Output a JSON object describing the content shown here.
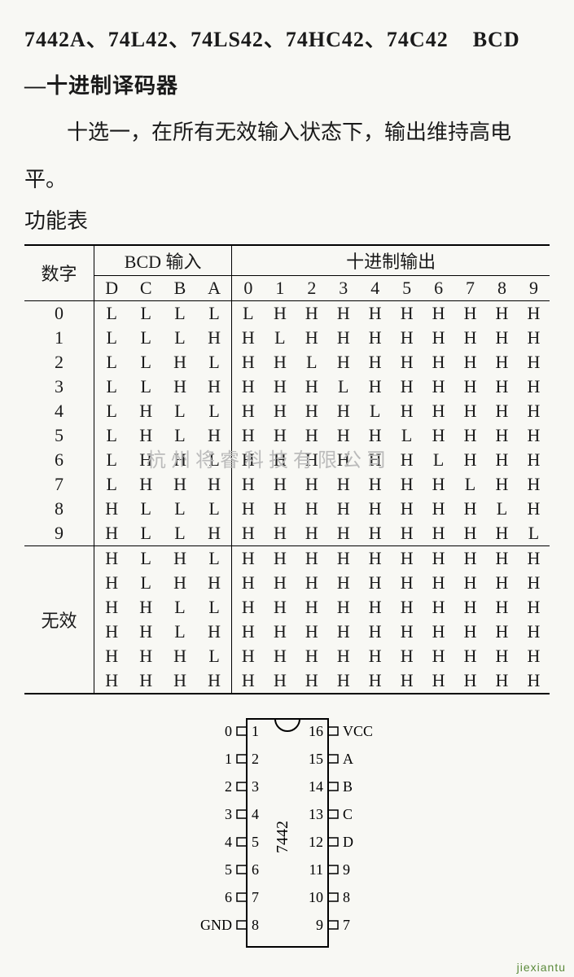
{
  "header": {
    "parts": "7442A、74L42、74LS42、74HC42、74C42",
    "type": "BCD",
    "subtitle": "—十进制译码器"
  },
  "description": "十选一，在所有无效输入状态下，输出维持高电平。",
  "table_title": "功能表",
  "columns": {
    "digit_header": "数字",
    "input_group": "BCD 输入",
    "output_group": "十进制输出",
    "inputs": [
      "D",
      "C",
      "B",
      "A"
    ],
    "outputs": [
      "0",
      "1",
      "2",
      "3",
      "4",
      "5",
      "6",
      "7",
      "8",
      "9"
    ]
  },
  "rows_valid": [
    {
      "d": "0",
      "in": [
        "L",
        "L",
        "L",
        "L"
      ],
      "out": [
        "L",
        "H",
        "H",
        "H",
        "H",
        "H",
        "H",
        "H",
        "H",
        "H"
      ]
    },
    {
      "d": "1",
      "in": [
        "L",
        "L",
        "L",
        "H"
      ],
      "out": [
        "H",
        "L",
        "H",
        "H",
        "H",
        "H",
        "H",
        "H",
        "H",
        "H"
      ]
    },
    {
      "d": "2",
      "in": [
        "L",
        "L",
        "H",
        "L"
      ],
      "out": [
        "H",
        "H",
        "L",
        "H",
        "H",
        "H",
        "H",
        "H",
        "H",
        "H"
      ]
    },
    {
      "d": "3",
      "in": [
        "L",
        "L",
        "H",
        "H"
      ],
      "out": [
        "H",
        "H",
        "H",
        "L",
        "H",
        "H",
        "H",
        "H",
        "H",
        "H"
      ]
    },
    {
      "d": "4",
      "in": [
        "L",
        "H",
        "L",
        "L"
      ],
      "out": [
        "H",
        "H",
        "H",
        "H",
        "L",
        "H",
        "H",
        "H",
        "H",
        "H"
      ]
    },
    {
      "d": "5",
      "in": [
        "L",
        "H",
        "L",
        "H"
      ],
      "out": [
        "H",
        "H",
        "H",
        "H",
        "H",
        "L",
        "H",
        "H",
        "H",
        "H"
      ]
    },
    {
      "d": "6",
      "in": [
        "L",
        "H",
        "H",
        "L"
      ],
      "out": [
        "H",
        "H",
        "H",
        "H",
        "H",
        "H",
        "L",
        "H",
        "H",
        "H"
      ]
    },
    {
      "d": "7",
      "in": [
        "L",
        "H",
        "H",
        "H"
      ],
      "out": [
        "H",
        "H",
        "H",
        "H",
        "H",
        "H",
        "H",
        "L",
        "H",
        "H"
      ]
    },
    {
      "d": "8",
      "in": [
        "H",
        "L",
        "L",
        "L"
      ],
      "out": [
        "H",
        "H",
        "H",
        "H",
        "H",
        "H",
        "H",
        "H",
        "L",
        "H"
      ]
    },
    {
      "d": "9",
      "in": [
        "H",
        "L",
        "L",
        "H"
      ],
      "out": [
        "H",
        "H",
        "H",
        "H",
        "H",
        "H",
        "H",
        "H",
        "H",
        "L"
      ]
    }
  ],
  "invalid_label": "无效",
  "rows_invalid": [
    {
      "in": [
        "H",
        "L",
        "H",
        "L"
      ],
      "out": [
        "H",
        "H",
        "H",
        "H",
        "H",
        "H",
        "H",
        "H",
        "H",
        "H"
      ]
    },
    {
      "in": [
        "H",
        "L",
        "H",
        "H"
      ],
      "out": [
        "H",
        "H",
        "H",
        "H",
        "H",
        "H",
        "H",
        "H",
        "H",
        "H"
      ]
    },
    {
      "in": [
        "H",
        "H",
        "L",
        "L"
      ],
      "out": [
        "H",
        "H",
        "H",
        "H",
        "H",
        "H",
        "H",
        "H",
        "H",
        "H"
      ]
    },
    {
      "in": [
        "H",
        "H",
        "L",
        "H"
      ],
      "out": [
        "H",
        "H",
        "H",
        "H",
        "H",
        "H",
        "H",
        "H",
        "H",
        "H"
      ]
    },
    {
      "in": [
        "H",
        "H",
        "H",
        "L"
      ],
      "out": [
        "H",
        "H",
        "H",
        "H",
        "H",
        "H",
        "H",
        "H",
        "H",
        "H"
      ]
    },
    {
      "in": [
        "H",
        "H",
        "H",
        "H"
      ],
      "out": [
        "H",
        "H",
        "H",
        "H",
        "H",
        "H",
        "H",
        "H",
        "H",
        "H"
      ]
    }
  ],
  "chip": {
    "name": "7442",
    "left_pins": [
      {
        "num": "1",
        "label": "0"
      },
      {
        "num": "2",
        "label": "1"
      },
      {
        "num": "3",
        "label": "2"
      },
      {
        "num": "4",
        "label": "3"
      },
      {
        "num": "5",
        "label": "4"
      },
      {
        "num": "6",
        "label": "5"
      },
      {
        "num": "7",
        "label": "6"
      },
      {
        "num": "8",
        "label": "GND"
      }
    ],
    "right_pins": [
      {
        "num": "16",
        "label": "VCC"
      },
      {
        "num": "15",
        "label": "A"
      },
      {
        "num": "14",
        "label": "B"
      },
      {
        "num": "13",
        "label": "C"
      },
      {
        "num": "12",
        "label": "D"
      },
      {
        "num": "11",
        "label": "9"
      },
      {
        "num": "10",
        "label": "8"
      },
      {
        "num": "9",
        "label": "7"
      }
    ]
  },
  "watermark": "杭州将睿科技有限公司",
  "footer": "jiexiantu"
}
